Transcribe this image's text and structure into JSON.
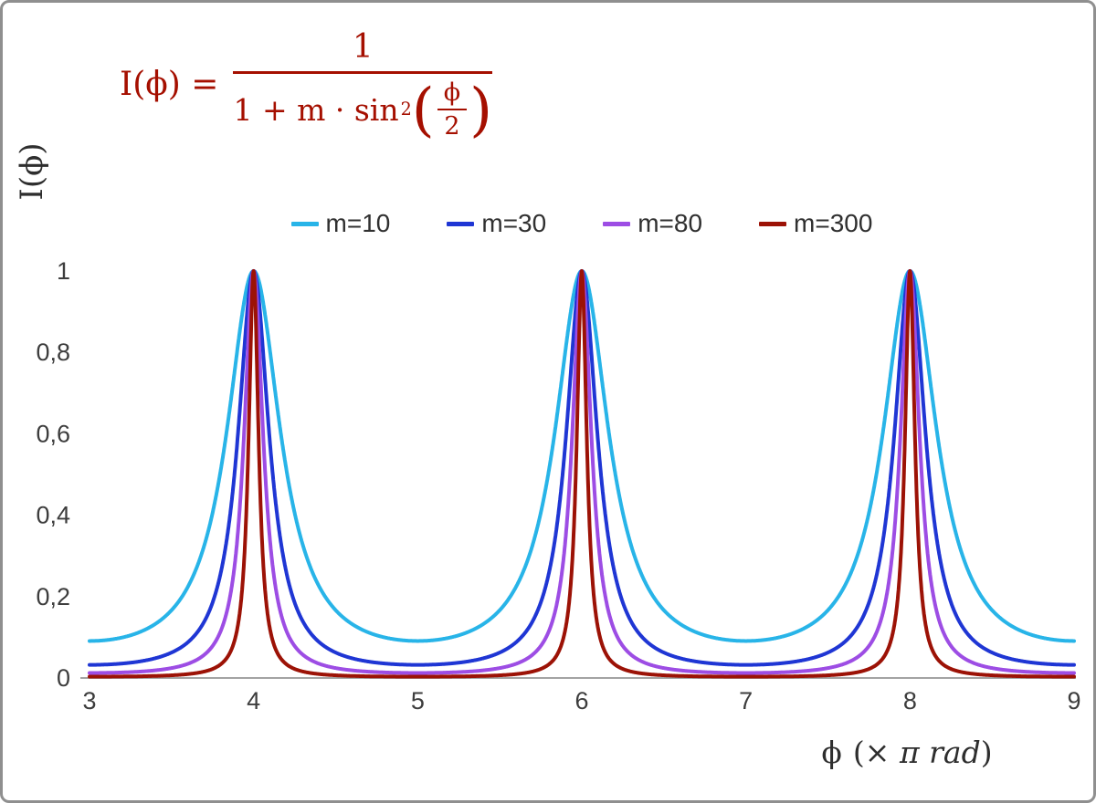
{
  "chart_data": {
    "type": "line",
    "title": "",
    "function": "I(phi) = 1 / (1 + m * sin^2(phi/2)), phi expressed in units of pi rad",
    "x_range": [
      3,
      9
    ],
    "y_axis_range_labeled": [
      0,
      1
    ],
    "grid": false,
    "legend_position": "top-center",
    "x_ticks": [
      {
        "v": 3,
        "label": "3"
      },
      {
        "v": 4,
        "label": "4"
      },
      {
        "v": 5,
        "label": "5"
      },
      {
        "v": 6,
        "label": "6"
      },
      {
        "v": 7,
        "label": "7"
      },
      {
        "v": 8,
        "label": "8"
      },
      {
        "v": 9,
        "label": "9"
      }
    ],
    "y_ticks": [
      {
        "v": 0,
        "label": "0"
      },
      {
        "v": 0.2,
        "label": "0,2"
      },
      {
        "v": 0.4,
        "label": "0,4"
      },
      {
        "v": 0.6,
        "label": "0,6"
      },
      {
        "v": 0.8,
        "label": "0,8"
      },
      {
        "v": 1,
        "label": "1"
      }
    ],
    "series": [
      {
        "label": "m=10",
        "m": 10,
        "color": "#28b4e8",
        "peak_value": 1,
        "peak_x": [
          4,
          6,
          8
        ],
        "min_value_at_odd_x": 0.0909
      },
      {
        "label": "m=30",
        "m": 30,
        "color": "#1f36d4",
        "peak_value": 1,
        "peak_x": [
          4,
          6,
          8
        ],
        "min_value_at_odd_x": 0.0323
      },
      {
        "label": "m=80",
        "m": 80,
        "color": "#9d4de4",
        "peak_value": 1,
        "peak_x": [
          4,
          6,
          8
        ],
        "min_value_at_odd_x": 0.0123
      },
      {
        "label": "m=300",
        "m": 300,
        "color": "#9c1206",
        "peak_value": 1,
        "peak_x": [
          4,
          6,
          8
        ],
        "min_value_at_odd_x": 0.0033
      }
    ],
    "xlabel_symbol": "ϕ",
    "xlabel_prefix": "(×",
    "xlabel_italic": " π rad",
    "xlabel_close": ")",
    "ylabel": "I(ϕ)",
    "axis_color": "#a3a3a3",
    "tick_text_color": "#3d3d3d"
  },
  "formula": {
    "color": "#a50f00",
    "lhs": "I(ϕ) =",
    "numerator": "1",
    "denominator_prefix": "1 + m · sin",
    "denominator_sup": "2",
    "open_paren": "(",
    "inner_numerator": "ϕ",
    "inner_denominator": "2",
    "close_paren": ")"
  }
}
